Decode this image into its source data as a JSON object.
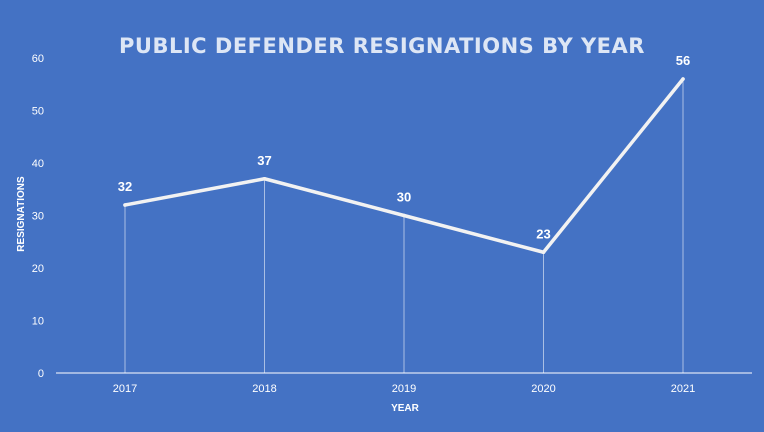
{
  "chart_data": {
    "type": "line",
    "title": "PUBLIC DEFENDER RESIGNATIONS BY YEAR",
    "xlabel": "YEAR",
    "ylabel": "RESIGNATIONS",
    "categories": [
      "2017",
      "2018",
      "2019",
      "2020",
      "2021"
    ],
    "series": [
      {
        "values": [
          32,
          37,
          30,
          23,
          56
        ]
      }
    ],
    "ylim": [
      0,
      60
    ],
    "yticks": [
      0,
      10,
      20,
      30,
      40,
      50,
      60
    ],
    "data_labels": [
      "32",
      "37",
      "30",
      "23",
      "56"
    ],
    "grid": false,
    "drop_lines": true,
    "colors": {
      "background": "#4472c4",
      "line": "#f2f2f2",
      "title": "#dde6f5",
      "text": "#ffffff"
    }
  }
}
